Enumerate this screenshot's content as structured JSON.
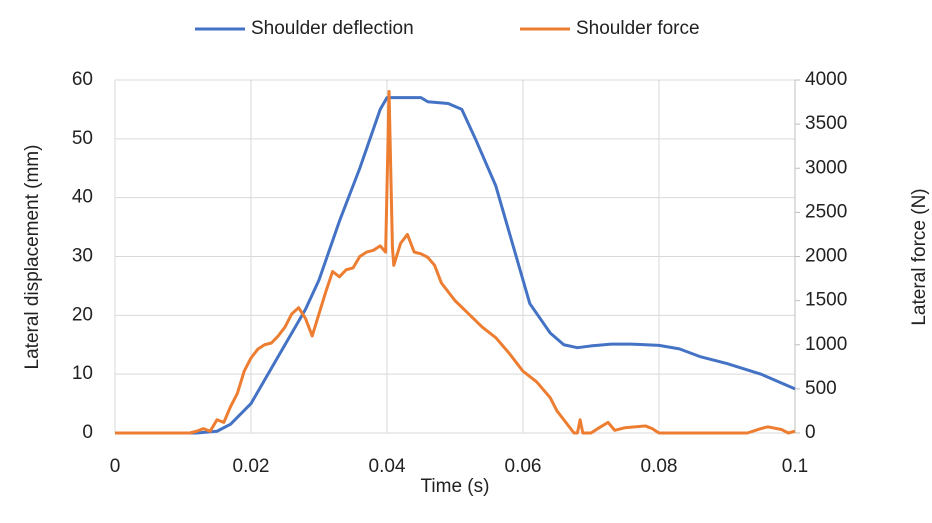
{
  "chart_data": {
    "type": "line",
    "xlabel": "Time (s)",
    "ylabel": "Lateral displacement (mm)",
    "y2label": "Lateral force (N)",
    "xlim": [
      0,
      0.1
    ],
    "xticks": [
      0,
      0.02,
      0.04,
      0.06,
      0.08,
      0.1
    ],
    "ylim": [
      0,
      60
    ],
    "yticks": [
      0,
      10,
      20,
      30,
      40,
      50,
      60
    ],
    "y2lim": [
      0,
      4000
    ],
    "y2ticks": [
      0,
      500,
      1000,
      1500,
      2000,
      2500,
      3000,
      3500,
      4000
    ],
    "grid": true,
    "legend": "top",
    "series": [
      {
        "name": "Shoulder deflection",
        "color": "#4472c4",
        "x": [
          0,
          0.012,
          0.015,
          0.017,
          0.02,
          0.022,
          0.025,
          0.028,
          0.03,
          0.033,
          0.036,
          0.039,
          0.04,
          0.045,
          0.046,
          0.049,
          0.051,
          0.053,
          0.056,
          0.059,
          0.061,
          0.064,
          0.066,
          0.068,
          0.07,
          0.073,
          0.076,
          0.08,
          0.083,
          0.086,
          0.09,
          0.095,
          0.1
        ],
        "values": [
          0,
          0,
          0.3,
          1.5,
          5,
          9,
          15,
          21,
          26,
          36,
          45,
          55,
          57,
          57,
          56.3,
          56,
          55,
          50,
          42,
          30,
          22,
          17,
          15,
          14.5,
          14.8,
          15.1,
          15.1,
          14.9,
          14.3,
          13,
          11.8,
          10,
          7.5
        ]
      },
      {
        "name": "Shoulder force",
        "color": "#ed7d31",
        "axis": "y2",
        "x": [
          0,
          0.011,
          0.012,
          0.013,
          0.014,
          0.015,
          0.016,
          0.017,
          0.018,
          0.019,
          0.02,
          0.021,
          0.022,
          0.023,
          0.024,
          0.025,
          0.026,
          0.027,
          0.028,
          0.029,
          0.03,
          0.031,
          0.032,
          0.033,
          0.034,
          0.035,
          0.036,
          0.037,
          0.038,
          0.039,
          0.0398,
          0.0403,
          0.0408,
          0.041,
          0.042,
          0.043,
          0.044,
          0.045,
          0.046,
          0.047,
          0.048,
          0.05,
          0.052,
          0.054,
          0.056,
          0.058,
          0.06,
          0.062,
          0.064,
          0.065,
          0.066,
          0.067,
          0.0675,
          0.068,
          0.0684,
          0.0688,
          0.07,
          0.071,
          0.0725,
          0.0735,
          0.075,
          0.078,
          0.079,
          0.08,
          0.093,
          0.095,
          0.096,
          0.098,
          0.099,
          0.1
        ],
        "values": [
          0,
          0,
          20,
          50,
          20,
          150,
          120,
          300,
          450,
          700,
          850,
          950,
          1000,
          1020,
          1100,
          1200,
          1350,
          1420,
          1300,
          1100,
          1350,
          1600,
          1830,
          1770,
          1850,
          1870,
          2000,
          2050,
          2070,
          2120,
          2050,
          3870,
          2100,
          1900,
          2150,
          2250,
          2050,
          2030,
          1990,
          1900,
          1700,
          1500,
          1350,
          1200,
          1080,
          900,
          700,
          580,
          400,
          250,
          150,
          50,
          0,
          0,
          150,
          0,
          0,
          50,
          120,
          30,
          60,
          80,
          50,
          0,
          0,
          50,
          70,
          40,
          0,
          20
        ]
      }
    ]
  }
}
